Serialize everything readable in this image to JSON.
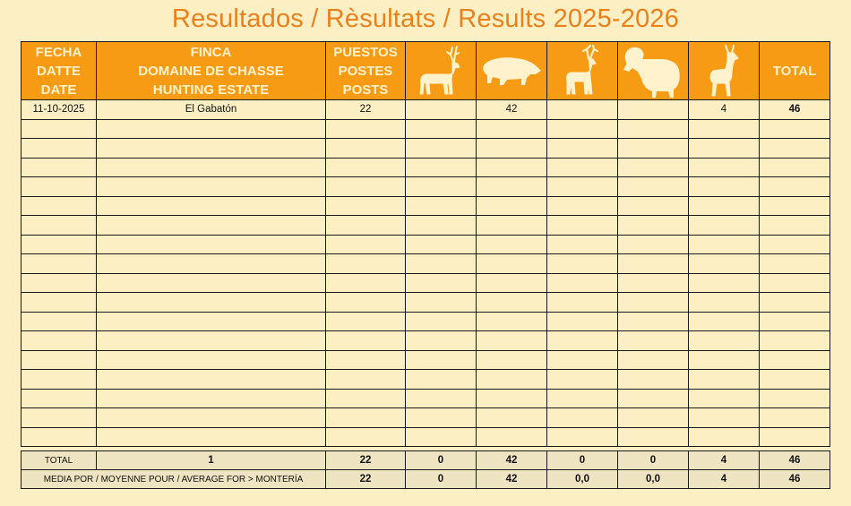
{
  "title": "Resultados / Rèsultats / Results 2025-2026",
  "header": {
    "fecha": [
      "FECHA",
      "DATTE",
      "DATE"
    ],
    "finca": [
      "FINCA",
      "DOMAINE DE CHASSE",
      "HUNTING ESTATE"
    ],
    "puestos": [
      "PUESTOS",
      "POSTES",
      "POSTS"
    ],
    "total": "TOTAL",
    "species_icons": [
      "red-deer-icon",
      "wild-boar-icon",
      "fallow-deer-icon",
      "mouflon-icon",
      "roe-deer-icon"
    ]
  },
  "rows": [
    [
      "11-10-2025",
      "El Gabatón",
      "22",
      "",
      "42",
      "",
      "",
      "4",
      "46"
    ],
    [
      "",
      "",
      "",
      "",
      "",
      "",
      "",
      "",
      ""
    ],
    [
      "",
      "",
      "",
      "",
      "",
      "",
      "",
      "",
      ""
    ],
    [
      "",
      "",
      "",
      "",
      "",
      "",
      "",
      "",
      ""
    ],
    [
      "",
      "",
      "",
      "",
      "",
      "",
      "",
      "",
      ""
    ],
    [
      "",
      "",
      "",
      "",
      "",
      "",
      "",
      "",
      ""
    ],
    [
      "",
      "",
      "",
      "",
      "",
      "",
      "",
      "",
      ""
    ],
    [
      "",
      "",
      "",
      "",
      "",
      "",
      "",
      "",
      ""
    ],
    [
      "",
      "",
      "",
      "",
      "",
      "",
      "",
      "",
      ""
    ],
    [
      "",
      "",
      "",
      "",
      "",
      "",
      "",
      "",
      ""
    ],
    [
      "",
      "",
      "",
      "",
      "",
      "",
      "",
      "",
      ""
    ],
    [
      "",
      "",
      "",
      "",
      "",
      "",
      "",
      "",
      ""
    ],
    [
      "",
      "",
      "",
      "",
      "",
      "",
      "",
      "",
      ""
    ],
    [
      "",
      "",
      "",
      "",
      "",
      "",
      "",
      "",
      ""
    ],
    [
      "",
      "",
      "",
      "",
      "",
      "",
      "",
      "",
      ""
    ],
    [
      "",
      "",
      "",
      "",
      "",
      "",
      "",
      "",
      ""
    ],
    [
      "",
      "",
      "",
      "",
      "",
      "",
      "",
      "",
      ""
    ],
    [
      "",
      "",
      "",
      "",
      "",
      "",
      "",
      "",
      ""
    ]
  ],
  "totals": {
    "label": "TOTAL",
    "values": [
      "1",
      "22",
      "0",
      "42",
      "0",
      "0",
      "4",
      "46"
    ]
  },
  "averages": {
    "label": "MEDIA POR / MOYENNE POUR / AVERAGE FOR > MONTERÍA",
    "values": [
      "22",
      "0",
      "42",
      "0,0",
      "0,0",
      "4",
      "46"
    ]
  },
  "colors": {
    "title": "#e8801c",
    "header_bg": "#f79a14",
    "header_text": "#fff2cc",
    "page_bg": "#fdefc4",
    "footer_bg": "#efe4c2"
  }
}
